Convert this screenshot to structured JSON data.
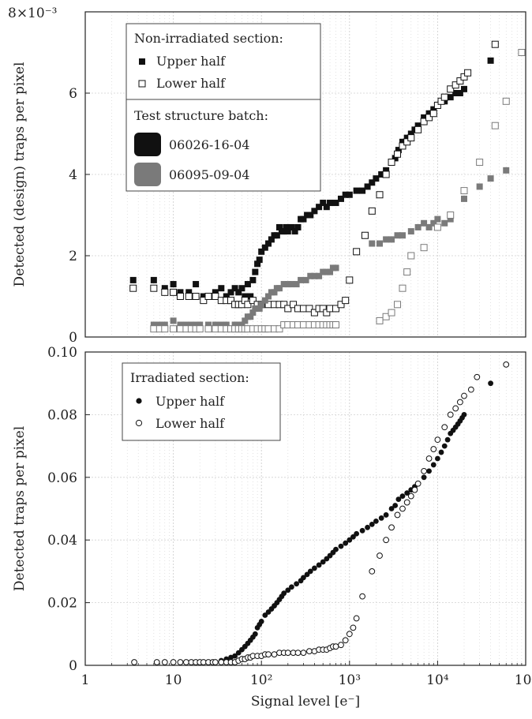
{
  "chart_data": [
    {
      "type": "scatter",
      "panel": "top",
      "ylabel": "Detected (design) traps per pixel",
      "y_exponent_label": "8×10⁻³",
      "xscale": "log",
      "xlim": [
        1,
        100000
      ],
      "ylim": [
        0,
        0.008
      ],
      "yticks": [
        {
          "value": 0,
          "label": "0"
        },
        {
          "value": 0.002,
          "label": "2"
        },
        {
          "value": 0.004,
          "label": "4"
        },
        {
          "value": 0.006,
          "label": "6"
        }
      ],
      "grid": true,
      "legend": {
        "placement": "upper-left",
        "section_title": "Non-irradiated section:",
        "markers": [
          {
            "key": "upper",
            "label": "Upper half",
            "marker": "filled-square"
          },
          {
            "key": "lower",
            "label": "Lower half",
            "marker": "open-square"
          }
        ],
        "batch_title": "Test structure batch:",
        "batches": [
          {
            "key": "b1",
            "label": "06026-16-04",
            "color": "#111111"
          },
          {
            "key": "b2",
            "label": "06095-09-04",
            "color": "#7a7a7a"
          }
        ]
      },
      "series": [
        {
          "batch": "06026-16-04",
          "half": "Upper half",
          "color": "#111111",
          "marker": "filled-square",
          "x": [
            3.5,
            6,
            8,
            10,
            12,
            15,
            18,
            22,
            25,
            30,
            35,
            40,
            45,
            50,
            55,
            60,
            65,
            70,
            75,
            80,
            85,
            90,
            95,
            100,
            110,
            120,
            130,
            140,
            150,
            160,
            170,
            180,
            190,
            200,
            220,
            240,
            260,
            280,
            300,
            330,
            360,
            400,
            450,
            500,
            550,
            600,
            700,
            800,
            900,
            1000,
            1200,
            1400,
            1600,
            1800,
            2000,
            2300,
            2600,
            3000,
            3300,
            3600,
            4000,
            4500,
            5000,
            5500,
            6000,
            7000,
            8000,
            9000,
            10000,
            12000,
            14000,
            16000,
            18000,
            20000,
            40000
          ],
          "y": [
            0.0014,
            0.0014,
            0.0012,
            0.0013,
            0.0011,
            0.0011,
            0.0013,
            0.001,
            0.001,
            0.0011,
            0.0012,
            0.001,
            0.0011,
            0.0012,
            0.0011,
            0.0012,
            0.001,
            0.0013,
            0.001,
            0.0014,
            0.0016,
            0.0018,
            0.0019,
            0.0021,
            0.0022,
            0.0023,
            0.0024,
            0.0025,
            0.0025,
            0.0027,
            0.0026,
            0.0026,
            0.0027,
            0.0026,
            0.0027,
            0.0026,
            0.0027,
            0.0029,
            0.0029,
            0.003,
            0.003,
            0.0031,
            0.0032,
            0.0033,
            0.0032,
            0.0033,
            0.0033,
            0.0034,
            0.0035,
            0.0035,
            0.0036,
            0.0036,
            0.0037,
            0.0038,
            0.0039,
            0.004,
            0.0041,
            0.0043,
            0.0044,
            0.0046,
            0.0048,
            0.0049,
            0.005,
            0.0051,
            0.0052,
            0.0054,
            0.0055,
            0.0056,
            0.0057,
            0.0058,
            0.0059,
            0.006,
            0.006,
            0.0061,
            0.0068
          ]
        },
        {
          "batch": "06026-16-04",
          "half": "Lower half",
          "color": "#111111",
          "marker": "open-square",
          "x": [
            3.5,
            6,
            8,
            10,
            12,
            15,
            18,
            22,
            25,
            30,
            35,
            40,
            45,
            50,
            55,
            60,
            65,
            70,
            80,
            90,
            100,
            120,
            140,
            160,
            180,
            200,
            230,
            260,
            300,
            350,
            400,
            450,
            500,
            550,
            600,
            700,
            800,
            900,
            1000,
            1200,
            1500,
            1800,
            2200,
            2600,
            3000,
            3500,
            4000,
            4500,
            5000,
            6000,
            7000,
            8000,
            9000,
            10000,
            11000,
            12000,
            14000,
            16000,
            18000,
            20000,
            22000,
            45000
          ],
          "y": [
            0.0012,
            0.0012,
            0.0011,
            0.0011,
            0.001,
            0.001,
            0.001,
            0.0009,
            0.001,
            0.001,
            0.0009,
            0.0009,
            0.0009,
            0.0008,
            0.0008,
            0.0008,
            0.0009,
            0.0008,
            0.0009,
            0.0008,
            0.0008,
            0.0008,
            0.0008,
            0.0008,
            0.0008,
            0.0007,
            0.0008,
            0.0007,
            0.0007,
            0.0007,
            0.0006,
            0.0007,
            0.0007,
            0.0006,
            0.0007,
            0.0007,
            0.0008,
            0.0009,
            0.0014,
            0.0021,
            0.0025,
            0.0031,
            0.0035,
            0.004,
            0.0043,
            0.0045,
            0.0047,
            0.0048,
            0.0049,
            0.0051,
            0.0053,
            0.0054,
            0.0055,
            0.0057,
            0.0058,
            0.0059,
            0.0061,
            0.0062,
            0.0063,
            0.0064,
            0.0065,
            0.0072
          ]
        },
        {
          "batch": "06095-09-04",
          "half": "Upper half",
          "color": "#7a7a7a",
          "marker": "filled-square",
          "x": [
            6,
            7,
            8,
            10,
            12,
            14,
            16,
            18,
            20,
            25,
            30,
            35,
            40,
            45,
            50,
            55,
            60,
            65,
            70,
            75,
            80,
            85,
            90,
            95,
            100,
            110,
            120,
            130,
            140,
            150,
            160,
            180,
            200,
            220,
            250,
            280,
            320,
            360,
            400,
            450,
            500,
            550,
            600,
            650,
            700,
            1800,
            2200,
            2600,
            3000,
            3500,
            4000,
            5000,
            6000,
            7000,
            8000,
            9000,
            10000,
            12000,
            14000,
            20000,
            30000,
            40000,
            60000
          ],
          "y": [
            0.0003,
            0.0003,
            0.0003,
            0.0004,
            0.0003,
            0.0003,
            0.0003,
            0.0003,
            0.0003,
            0.0003,
            0.0003,
            0.0003,
            0.0003,
            0.0002,
            0.0003,
            0.0003,
            0.0003,
            0.0004,
            0.0005,
            0.0005,
            0.0006,
            0.0007,
            0.0007,
            0.0007,
            0.0008,
            0.0009,
            0.001,
            0.0011,
            0.0011,
            0.0012,
            0.0012,
            0.0013,
            0.0013,
            0.0013,
            0.0013,
            0.0014,
            0.0014,
            0.0015,
            0.0015,
            0.0015,
            0.0016,
            0.0016,
            0.0016,
            0.0017,
            0.0017,
            0.0023,
            0.0023,
            0.0024,
            0.0024,
            0.0025,
            0.0025,
            0.0026,
            0.0027,
            0.0028,
            0.0027,
            0.0028,
            0.0029,
            0.0028,
            0.0029,
            0.0034,
            0.0037,
            0.0039,
            0.0041
          ]
        },
        {
          "batch": "06095-09-04",
          "half": "Lower half",
          "color": "#7a7a7a",
          "marker": "open-square",
          "x": [
            6,
            7,
            8,
            10,
            12,
            14,
            16,
            18,
            20,
            25,
            30,
            35,
            40,
            45,
            50,
            55,
            60,
            65,
            70,
            80,
            90,
            100,
            110,
            120,
            140,
            160,
            180,
            200,
            230,
            260,
            300,
            350,
            400,
            450,
            500,
            550,
            600,
            650,
            700,
            2200,
            2600,
            3000,
            3500,
            4000,
            4500,
            5000,
            7000,
            10000,
            14000,
            20000,
            30000,
            45000,
            60000,
            90000
          ],
          "y": [
            0.0002,
            0.0002,
            0.0002,
            0.0002,
            0.0002,
            0.0002,
            0.0002,
            0.0002,
            0.0002,
            0.0002,
            0.0002,
            0.0002,
            0.0002,
            0.0002,
            0.0002,
            0.0002,
            0.0002,
            0.0002,
            0.0002,
            0.0002,
            0.0002,
            0.0002,
            0.0002,
            0.0002,
            0.0002,
            0.0002,
            0.0003,
            0.0003,
            0.0003,
            0.0003,
            0.0003,
            0.0003,
            0.0003,
            0.0003,
            0.0003,
            0.0003,
            0.0003,
            0.0003,
            0.0003,
            0.0004,
            0.0005,
            0.0006,
            0.0008,
            0.0012,
            0.0016,
            0.002,
            0.0022,
            0.0027,
            0.003,
            0.0036,
            0.0043,
            0.0052,
            0.0058,
            0.007
          ]
        }
      ]
    },
    {
      "type": "scatter",
      "panel": "bottom",
      "xlabel": "Signal level [e⁻]",
      "ylabel": "Detected traps per pixel",
      "xscale": "log",
      "xlim": [
        1,
        100000
      ],
      "ylim": [
        0,
        0.1
      ],
      "xticks": [
        {
          "value": 1,
          "label": "1"
        },
        {
          "value": 10,
          "label": "10"
        },
        {
          "value": 100,
          "label": "10²"
        },
        {
          "value": 1000,
          "label": "10³"
        },
        {
          "value": 10000,
          "label": "10⁴"
        },
        {
          "value": 100000,
          "label": "10⁵"
        }
      ],
      "yticks": [
        {
          "value": 0,
          "label": "0"
        },
        {
          "value": 0.02,
          "label": "0.02"
        },
        {
          "value": 0.04,
          "label": "0.04"
        },
        {
          "value": 0.06,
          "label": "0.06"
        },
        {
          "value": 0.08,
          "label": "0.08"
        },
        {
          "value": 0.1,
          "label": "0.10"
        }
      ],
      "grid": true,
      "legend": {
        "placement": "upper-left",
        "section_title": "Irradiated section:",
        "markers": [
          {
            "key": "upper",
            "label": "Upper half",
            "marker": "filled-circle"
          },
          {
            "key": "lower",
            "label": "Lower half",
            "marker": "open-circle"
          }
        ]
      },
      "series": [
        {
          "half": "Upper half",
          "color": "#111111",
          "marker": "filled-circle",
          "x": [
            3.6,
            6.5,
            8,
            10,
            12,
            14,
            16,
            18,
            20,
            22,
            25,
            28,
            30,
            35,
            40,
            45,
            50,
            55,
            60,
            65,
            70,
            75,
            80,
            85,
            90,
            95,
            100,
            110,
            120,
            130,
            140,
            150,
            160,
            170,
            180,
            200,
            220,
            250,
            280,
            300,
            330,
            360,
            400,
            450,
            500,
            550,
            600,
            650,
            700,
            800,
            900,
            1000,
            1100,
            1200,
            1400,
            1600,
            1800,
            2000,
            2300,
            2600,
            3000,
            3300,
            3600,
            4000,
            4500,
            5000,
            5500,
            6000,
            7000,
            8000,
            9000,
            10000,
            11000,
            12000,
            13000,
            14000,
            15000,
            16000,
            17000,
            18000,
            19000,
            20000,
            40000
          ],
          "y": [
            0.001,
            0.001,
            0.001,
            0.001,
            0.001,
            0.001,
            0.001,
            0.001,
            0.001,
            0.001,
            0.001,
            0.001,
            0.001,
            0.0015,
            0.002,
            0.0025,
            0.003,
            0.004,
            0.005,
            0.006,
            0.007,
            0.008,
            0.009,
            0.01,
            0.012,
            0.013,
            0.014,
            0.016,
            0.017,
            0.018,
            0.019,
            0.02,
            0.021,
            0.022,
            0.023,
            0.024,
            0.025,
            0.026,
            0.027,
            0.028,
            0.029,
            0.03,
            0.031,
            0.032,
            0.033,
            0.034,
            0.035,
            0.036,
            0.037,
            0.038,
            0.039,
            0.04,
            0.041,
            0.042,
            0.043,
            0.044,
            0.045,
            0.046,
            0.047,
            0.048,
            0.05,
            0.051,
            0.053,
            0.054,
            0.055,
            0.056,
            0.057,
            0.058,
            0.06,
            0.062,
            0.064,
            0.066,
            0.068,
            0.07,
            0.072,
            0.074,
            0.075,
            0.076,
            0.077,
            0.078,
            0.079,
            0.08,
            0.09
          ]
        },
        {
          "half": "Lower half",
          "color": "#111111",
          "marker": "open-circle",
          "x": [
            3.6,
            6.5,
            8,
            10,
            12,
            14,
            16,
            18,
            20,
            22,
            25,
            28,
            30,
            35,
            40,
            45,
            50,
            55,
            60,
            65,
            70,
            75,
            80,
            90,
            100,
            110,
            120,
            140,
            160,
            180,
            200,
            230,
            260,
            300,
            350,
            400,
            450,
            500,
            550,
            600,
            650,
            700,
            800,
            900,
            1000,
            1100,
            1200,
            1400,
            1800,
            2200,
            2600,
            3000,
            3500,
            4000,
            4500,
            5000,
            5500,
            6000,
            7000,
            8000,
            9000,
            10000,
            12000,
            14000,
            16000,
            18000,
            20000,
            24000,
            28000,
            60000
          ],
          "y": [
            0.001,
            0.001,
            0.001,
            0.001,
            0.001,
            0.001,
            0.001,
            0.001,
            0.001,
            0.001,
            0.001,
            0.001,
            0.001,
            0.001,
            0.001,
            0.001,
            0.001,
            0.0015,
            0.002,
            0.002,
            0.0025,
            0.0025,
            0.003,
            0.003,
            0.003,
            0.0035,
            0.0035,
            0.0035,
            0.004,
            0.004,
            0.004,
            0.004,
            0.004,
            0.004,
            0.0045,
            0.0045,
            0.005,
            0.005,
            0.005,
            0.0055,
            0.006,
            0.006,
            0.0065,
            0.008,
            0.01,
            0.012,
            0.015,
            0.022,
            0.03,
            0.035,
            0.04,
            0.044,
            0.048,
            0.05,
            0.052,
            0.054,
            0.056,
            0.058,
            0.062,
            0.066,
            0.069,
            0.072,
            0.076,
            0.08,
            0.082,
            0.084,
            0.086,
            0.088,
            0.092,
            0.096
          ]
        }
      ]
    }
  ]
}
